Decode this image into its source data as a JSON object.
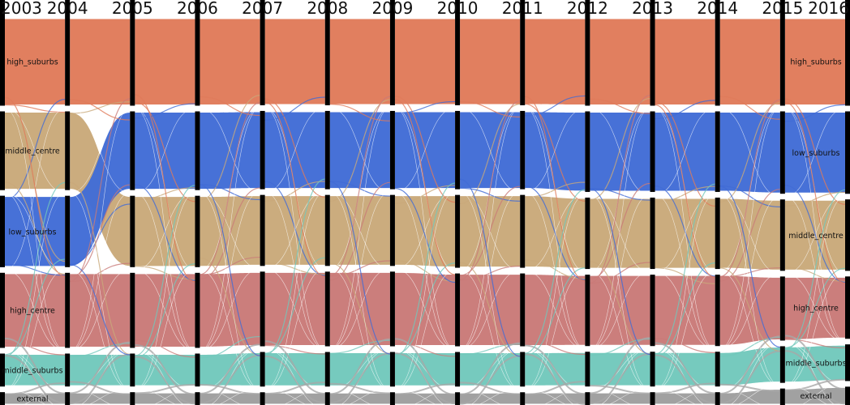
{
  "chart_data": {
    "type": "alluvial",
    "title": "",
    "years": [
      "2003",
      "2004",
      "2005",
      "2006",
      "2007",
      "2008",
      "2009",
      "2010",
      "2011",
      "2012",
      "2013",
      "2014",
      "2015",
      "2016"
    ],
    "categories": [
      "high_suburbs",
      "middle_centre",
      "low_suburbs",
      "high_centre",
      "middle_suburbs",
      "external"
    ],
    "colors": {
      "high_suburbs": "#e07b5a",
      "middle_centre": "#c9a97a",
      "low_suburbs": "#416cd6",
      "high_centre": "#c97a78",
      "middle_suburbs": "#72c8bc",
      "external": "#9e9e9e"
    },
    "stack_order": [
      [
        "high_suburbs",
        "middle_centre",
        "low_suburbs",
        "high_centre",
        "middle_suburbs",
        "external"
      ],
      [
        "high_suburbs",
        "middle_centre",
        "low_suburbs",
        "high_centre",
        "middle_suburbs",
        "external"
      ],
      [
        "high_suburbs",
        "low_suburbs",
        "middle_centre",
        "high_centre",
        "middle_suburbs",
        "external"
      ],
      [
        "high_suburbs",
        "low_suburbs",
        "middle_centre",
        "high_centre",
        "middle_suburbs",
        "external"
      ],
      [
        "high_suburbs",
        "low_suburbs",
        "middle_centre",
        "high_centre",
        "middle_suburbs",
        "external"
      ],
      [
        "high_suburbs",
        "low_suburbs",
        "middle_centre",
        "high_centre",
        "middle_suburbs",
        "external"
      ],
      [
        "high_suburbs",
        "low_suburbs",
        "middle_centre",
        "high_centre",
        "middle_suburbs",
        "external"
      ],
      [
        "high_suburbs",
        "low_suburbs",
        "middle_centre",
        "high_centre",
        "middle_suburbs",
        "external"
      ],
      [
        "high_suburbs",
        "low_suburbs",
        "middle_centre",
        "high_centre",
        "middle_suburbs",
        "external"
      ],
      [
        "high_suburbs",
        "low_suburbs",
        "middle_centre",
        "high_centre",
        "middle_suburbs",
        "external"
      ],
      [
        "high_suburbs",
        "low_suburbs",
        "middle_centre",
        "high_centre",
        "middle_suburbs",
        "external"
      ],
      [
        "high_suburbs",
        "low_suburbs",
        "middle_centre",
        "high_centre",
        "middle_suburbs",
        "external"
      ],
      [
        "high_suburbs",
        "low_suburbs",
        "middle_centre",
        "high_centre",
        "middle_suburbs",
        "external"
      ],
      [
        "high_suburbs",
        "low_suburbs",
        "middle_centre",
        "high_centre",
        "middle_suburbs",
        "external"
      ]
    ],
    "values": {
      "high_suburbs": [
        24.0,
        24.0,
        24.0,
        24.0,
        24.0,
        24.0,
        24.0,
        24.0,
        24.0,
        24.0,
        24.0,
        24.0,
        24.0,
        24.0
      ],
      "middle_centre": [
        21.5,
        21.5,
        19.5,
        19.5,
        19.5,
        19.5,
        19.5,
        20.0,
        20.0,
        19.5,
        19.5,
        19.5,
        19.5,
        19.5
      ],
      "low_suburbs": [
        19.5,
        19.5,
        21.5,
        21.5,
        21.5,
        21.5,
        21.5,
        21.5,
        21.5,
        22.0,
        22.0,
        22.0,
        22.5,
        22.5
      ],
      "high_centre": [
        20.5,
        20.5,
        20.5,
        20.5,
        20.5,
        20.5,
        20.5,
        20.0,
        20.0,
        19.5,
        19.5,
        19.5,
        17.5,
        17.0
      ],
      "middle_suburbs": [
        9.0,
        9.0,
        9.0,
        9.0,
        9.5,
        9.5,
        9.5,
        9.5,
        9.5,
        9.5,
        9.5,
        9.5,
        10.0,
        10.0
      ],
      "external": [
        3.5,
        3.5,
        3.5,
        3.5,
        3.5,
        3.5,
        3.5,
        3.5,
        3.5,
        3.5,
        3.5,
        3.5,
        4.5,
        5.0
      ]
    },
    "shown_labels": {
      "first_column": [
        "high_suburbs",
        "middle_centre",
        "low_suburbs",
        "high_centre",
        "middle_suburbs",
        "external"
      ],
      "last_column": [
        "high_suburbs",
        "low_suburbs",
        "middle_centre",
        "high_centre",
        "middle_suburbs",
        "external"
      ]
    },
    "legend": "none",
    "grid": false
  }
}
